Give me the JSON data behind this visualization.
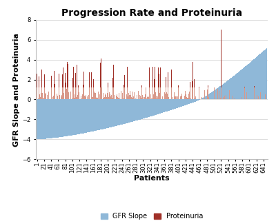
{
  "title": "Progression Rate and Proteinuria",
  "xlabel": "Patients",
  "ylabel": "GFR Slope and Proteinuria",
  "ylim": [
    -6,
    8
  ],
  "yticks": [
    -6,
    -4,
    -2,
    0,
    2,
    4,
    6,
    8
  ],
  "n_patients": 651,
  "xtick_positions": [
    1,
    21,
    41,
    61,
    81,
    101,
    121,
    141,
    161,
    181,
    201,
    221,
    241,
    261,
    281,
    301,
    321,
    341,
    361,
    381,
    401,
    421,
    441,
    461,
    481,
    501,
    521,
    541,
    561,
    581,
    601,
    621,
    641
  ],
  "gfr_color": "#8FB8D8",
  "prot_color_dark": "#A03028",
  "prot_color_light": "#D8998A",
  "background_color": "#ffffff",
  "grid_color": "#d0d0d0",
  "title_fontsize": 10,
  "axis_label_fontsize": 8,
  "tick_fontsize": 6
}
